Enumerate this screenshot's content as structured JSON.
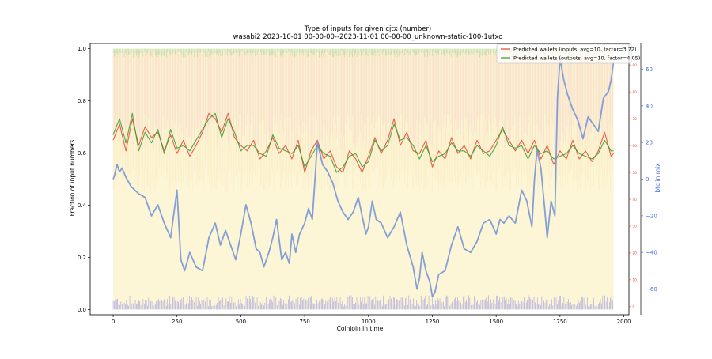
{
  "chart_data": {
    "type": "line",
    "title": "Type of inputs for given cjtx (number)",
    "subtitle": "wasabi2 2023-10-01 00-00-00--2023-11-01 00-00-00_unknown-static-100-1utxo",
    "xlabel": "Coinjoin in time",
    "ylabel": "Fraction of input numbers",
    "y2label": "btc in mix",
    "xlim": [
      -90,
      2020
    ],
    "ylim": [
      -0.02,
      1.02
    ],
    "y2lim": [
      -74,
      74
    ],
    "y3lim": [
      -3,
      98
    ],
    "x_ticks": [
      0,
      250,
      500,
      750,
      1000,
      1250,
      1500,
      1750,
      2000
    ],
    "y_ticks": [
      0.0,
      0.2,
      0.4,
      0.6,
      0.8,
      1.0
    ],
    "y_tick_labels": [
      "0.0",
      "0.2",
      "0.4",
      "0.6",
      "0.8",
      "1.0"
    ],
    "y2_ticks": [
      -60,
      -40,
      -20,
      0,
      20,
      40,
      60
    ],
    "y3_ticks": [
      0,
      10,
      20,
      30,
      40,
      50,
      60,
      70,
      80,
      90
    ],
    "legend_position": "top-right",
    "colors": {
      "inputs": "#e8432e",
      "outputs": "#2f9b2f",
      "btc": "#6f8fd8",
      "bg_red": "#f4b3b3",
      "bg_yellow": "#f7e48a",
      "bg_orange": "#f5c48c",
      "bg_blue": "#3a3af0",
      "bg_green": "#7fcf7f",
      "right_axis_red": "#e8432e",
      "right_axis_blue": "#4169e1"
    },
    "series": [
      {
        "name": "Predicted wallets (inputs, avg=10, factor=3.72)",
        "axis": "y3",
        "x": [
          0,
          25,
          50,
          75,
          100,
          125,
          150,
          175,
          200,
          225,
          250,
          275,
          300,
          325,
          350,
          375,
          400,
          425,
          450,
          475,
          500,
          525,
          550,
          575,
          600,
          625,
          650,
          675,
          700,
          725,
          750,
          775,
          800,
          825,
          850,
          875,
          900,
          925,
          950,
          975,
          1000,
          1025,
          1050,
          1075,
          1100,
          1125,
          1150,
          1175,
          1200,
          1225,
          1250,
          1275,
          1300,
          1325,
          1350,
          1375,
          1400,
          1425,
          1450,
          1475,
          1500,
          1525,
          1550,
          1575,
          1600,
          1625,
          1650,
          1675,
          1700,
          1725,
          1750,
          1775,
          1800,
          1825,
          1850,
          1875,
          1900,
          1925,
          1950,
          1960
        ],
        "values": [
          62,
          68,
          58,
          70,
          60,
          67,
          63,
          65,
          58,
          64,
          57,
          62,
          56,
          60,
          65,
          72,
          70,
          65,
          72,
          63,
          60,
          58,
          62,
          55,
          58,
          63,
          57,
          60,
          55,
          62,
          50,
          58,
          62,
          55,
          58,
          52,
          50,
          58,
          55,
          50,
          56,
          63,
          57,
          62,
          70,
          60,
          65,
          58,
          57,
          62,
          52,
          58,
          55,
          63,
          57,
          60,
          55,
          62,
          57,
          58,
          62,
          66,
          62,
          58,
          62,
          57,
          62,
          55,
          60,
          53,
          58,
          55,
          62,
          55,
          58,
          54,
          58,
          65,
          56,
          57
        ]
      },
      {
        "name": "Predicted wallets (outputs, avg=10, factor=4.05)",
        "axis": "y3",
        "x": [
          0,
          25,
          50,
          75,
          100,
          125,
          150,
          175,
          200,
          225,
          250,
          275,
          300,
          325,
          350,
          375,
          400,
          425,
          450,
          475,
          500,
          525,
          550,
          575,
          600,
          625,
          650,
          675,
          700,
          725,
          750,
          775,
          800,
          825,
          850,
          875,
          900,
          925,
          950,
          975,
          1000,
          1025,
          1050,
          1075,
          1100,
          1125,
          1150,
          1175,
          1200,
          1225,
          1250,
          1275,
          1300,
          1325,
          1350,
          1375,
          1400,
          1425,
          1450,
          1475,
          1500,
          1525,
          1550,
          1575,
          1600,
          1625,
          1650,
          1675,
          1700,
          1725,
          1750,
          1775,
          1800,
          1825,
          1850,
          1875,
          1900,
          1925,
          1950,
          1960
        ],
        "values": [
          64,
          70,
          61,
          72,
          58,
          65,
          61,
          66,
          57,
          66,
          59,
          60,
          58,
          62,
          66,
          70,
          72,
          63,
          70,
          65,
          58,
          60,
          60,
          57,
          56,
          64,
          59,
          58,
          57,
          60,
          52,
          56,
          60,
          57,
          56,
          50,
          52,
          56,
          57,
          52,
          54,
          62,
          58,
          60,
          68,
          62,
          63,
          60,
          55,
          60,
          54,
          56,
          57,
          61,
          58,
          58,
          56,
          60,
          58,
          56,
          60,
          67,
          60,
          59,
          60,
          55,
          60,
          57,
          58,
          55,
          56,
          57,
          60,
          57,
          56,
          55,
          57,
          62,
          58,
          58
        ]
      },
      {
        "name": "btc in mix",
        "axis": "y2",
        "x": [
          0,
          5,
          15,
          25,
          35,
          50,
          70,
          100,
          125,
          150,
          175,
          200,
          225,
          250,
          265,
          280,
          300,
          325,
          350,
          375,
          400,
          420,
          440,
          460,
          480,
          500,
          520,
          540,
          560,
          575,
          590,
          610,
          625,
          640,
          660,
          675,
          690,
          700,
          715,
          730,
          750,
          765,
          780,
          800,
          820,
          840,
          860,
          880,
          900,
          920,
          940,
          960,
          975,
          990,
          1000,
          1015,
          1030,
          1050,
          1075,
          1100,
          1125,
          1150,
          1175,
          1190,
          1200,
          1210,
          1225,
          1240,
          1250,
          1260,
          1275,
          1300,
          1325,
          1350,
          1375,
          1400,
          1425,
          1450,
          1475,
          1500,
          1515,
          1530,
          1550,
          1575,
          1600,
          1620,
          1640,
          1650,
          1660,
          1675,
          1690,
          1700,
          1715,
          1730,
          1740,
          1750,
          1765,
          1780,
          1800,
          1820,
          1840,
          1860,
          1880,
          1900,
          1920,
          1940,
          1950,
          1960
        ],
        "values": [
          0,
          2,
          8,
          4,
          6,
          1,
          -4,
          -8,
          -10,
          -20,
          -14,
          -24,
          -32,
          -6,
          -44,
          -50,
          -40,
          -48,
          -50,
          -32,
          -24,
          -36,
          -28,
          -36,
          -44,
          -30,
          -14,
          -24,
          -38,
          -40,
          -48,
          -40,
          -32,
          -22,
          -44,
          -40,
          -46,
          -30,
          -40,
          -30,
          -24,
          -16,
          -22,
          20,
          8,
          4,
          -2,
          -12,
          -18,
          -22,
          -18,
          -10,
          -20,
          -30,
          -26,
          -12,
          -22,
          -24,
          -32,
          -26,
          -18,
          -36,
          -48,
          -60,
          -54,
          -40,
          -50,
          -56,
          -64,
          -62,
          -52,
          -50,
          -36,
          -26,
          -38,
          -40,
          -34,
          -24,
          -22,
          -30,
          -22,
          -24,
          -20,
          -24,
          -6,
          -12,
          -26,
          0,
          16,
          6,
          -16,
          -32,
          -12,
          -20,
          44,
          66,
          54,
          46,
          38,
          32,
          22,
          34,
          30,
          26,
          44,
          48,
          54,
          64
        ]
      }
    ]
  }
}
